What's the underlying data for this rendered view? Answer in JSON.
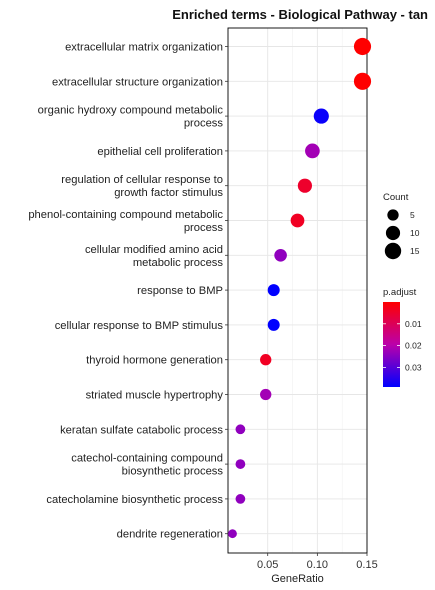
{
  "chart_data": {
    "type": "scatter",
    "title": "Enriched terms - Biological Pathway - tan",
    "xlabel": "GeneRatio",
    "ylabel": "",
    "xlim": [
      0.01,
      0.15
    ],
    "xticks": [
      0.05,
      0.1,
      0.15
    ],
    "xtick_labels": [
      "0.05",
      "0.10",
      "0.15"
    ],
    "grid": true,
    "legend_placement": "right",
    "color_low": "#ff0000",
    "color_high": "#0000ff",
    "terms": [
      {
        "label": [
          "extracellular matrix organization"
        ],
        "gene_ratio": 0.1455,
        "count": 17,
        "p_adjust": 0.0
      },
      {
        "label": [
          "extracellular structure organization"
        ],
        "gene_ratio": 0.1455,
        "count": 17,
        "p_adjust": 0.0
      },
      {
        "label": [
          "organic hydroxy compound metabolic",
          "process"
        ],
        "gene_ratio": 0.104,
        "count": 12,
        "p_adjust": 0.038
      },
      {
        "label": [
          "epithelial cell proliferation"
        ],
        "gene_ratio": 0.095,
        "count": 11,
        "p_adjust": 0.022
      },
      {
        "label": [
          "regulation of cellular response to",
          "growth factor stimulus"
        ],
        "gene_ratio": 0.0875,
        "count": 10,
        "p_adjust": 0.005
      },
      {
        "label": [
          "phenol-containing compound metabolic",
          "process"
        ],
        "gene_ratio": 0.08,
        "count": 9,
        "p_adjust": 0.004
      },
      {
        "label": [
          "cellular modified amino acid",
          "metabolic process"
        ],
        "gene_ratio": 0.063,
        "count": 7,
        "p_adjust": 0.024
      },
      {
        "label": [
          "response to BMP"
        ],
        "gene_ratio": 0.056,
        "count": 6,
        "p_adjust": 0.04
      },
      {
        "label": [
          "cellular response to BMP stimulus"
        ],
        "gene_ratio": 0.056,
        "count": 6,
        "p_adjust": 0.04
      },
      {
        "label": [
          "thyroid hormone generation"
        ],
        "gene_ratio": 0.048,
        "count": 5,
        "p_adjust": 0.004
      },
      {
        "label": [
          "striated muscle hypertrophy"
        ],
        "gene_ratio": 0.048,
        "count": 5,
        "p_adjust": 0.022
      },
      {
        "label": [
          "keratan sulfate catabolic process"
        ],
        "gene_ratio": 0.0225,
        "count": 3,
        "p_adjust": 0.024
      },
      {
        "label": [
          "catechol-containing compound",
          "biosynthetic process"
        ],
        "gene_ratio": 0.0225,
        "count": 3,
        "p_adjust": 0.024
      },
      {
        "label": [
          "catecholamine biosynthetic process"
        ],
        "gene_ratio": 0.0225,
        "count": 3,
        "p_adjust": 0.024
      },
      {
        "label": [
          "dendrite regeneration"
        ],
        "gene_ratio": 0.0145,
        "count": 2,
        "p_adjust": 0.024
      }
    ],
    "legend_count": {
      "title": "Count",
      "values": [
        5,
        10,
        15
      ],
      "labels": [
        "5",
        "10",
        "15"
      ]
    },
    "legend_padjust": {
      "title": "p.adjust",
      "range": [
        0.0,
        0.039
      ],
      "ticks": [
        0.01,
        0.02,
        0.03
      ],
      "labels": [
        "0.01",
        "0.02",
        "0.03"
      ]
    }
  }
}
